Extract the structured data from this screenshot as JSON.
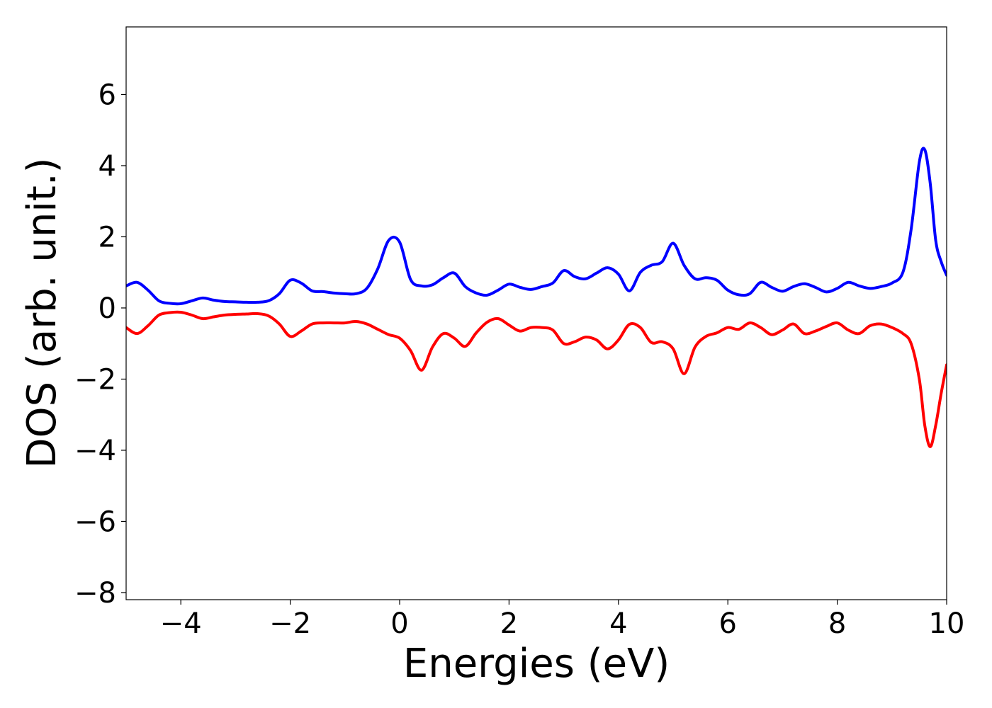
{
  "chart_data": {
    "type": "line",
    "xlabel": "Energies (eV)",
    "ylabel": "DOS (arb. unit.)",
    "xlim": [
      -5,
      10
    ],
    "ylim": [
      -8.2,
      7.9
    ],
    "x_ticks": [
      -4,
      -2,
      0,
      2,
      4,
      6,
      8,
      10
    ],
    "x_tick_labels": [
      "−4",
      "−2",
      "0",
      "2",
      "4",
      "6",
      "8",
      "10"
    ],
    "y_ticks": [
      -8,
      -6,
      -4,
      -2,
      0,
      2,
      4,
      6
    ],
    "y_tick_labels": [
      "−8",
      "−6",
      "−4",
      "−2",
      "0",
      "2",
      "4",
      "6"
    ],
    "grid": false,
    "legend": "none",
    "series": [
      {
        "color": "#0000ff",
        "x": [
          -5.0,
          -4.8,
          -4.6,
          -4.4,
          -4.2,
          -4.0,
          -3.8,
          -3.6,
          -3.4,
          -3.2,
          -3.0,
          -2.8,
          -2.6,
          -2.4,
          -2.2,
          -2.0,
          -1.8,
          -1.6,
          -1.4,
          -1.2,
          -1.0,
          -0.8,
          -0.6,
          -0.4,
          -0.2,
          0.0,
          0.2,
          0.4,
          0.6,
          0.8,
          1.0,
          1.2,
          1.4,
          1.6,
          1.8,
          2.0,
          2.2,
          2.4,
          2.6,
          2.8,
          3.0,
          3.2,
          3.4,
          3.6,
          3.8,
          4.0,
          4.2,
          4.4,
          4.6,
          4.8,
          5.0,
          5.2,
          5.4,
          5.6,
          5.8,
          6.0,
          6.2,
          6.4,
          6.6,
          6.8,
          7.0,
          7.2,
          7.4,
          7.6,
          7.8,
          8.0,
          8.2,
          8.4,
          8.6,
          8.8,
          9.0,
          9.2,
          9.35,
          9.5,
          9.6,
          9.7,
          9.8,
          9.9,
          10.0
        ],
        "y": [
          0.62,
          0.72,
          0.5,
          0.2,
          0.13,
          0.12,
          0.2,
          0.28,
          0.22,
          0.18,
          0.17,
          0.16,
          0.16,
          0.2,
          0.4,
          0.78,
          0.7,
          0.48,
          0.46,
          0.42,
          0.4,
          0.4,
          0.55,
          1.1,
          1.9,
          1.85,
          0.8,
          0.62,
          0.65,
          0.85,
          0.98,
          0.6,
          0.42,
          0.36,
          0.5,
          0.67,
          0.58,
          0.52,
          0.6,
          0.7,
          1.05,
          0.88,
          0.82,
          0.98,
          1.13,
          0.95,
          0.48,
          1.0,
          1.2,
          1.3,
          1.82,
          1.2,
          0.82,
          0.85,
          0.78,
          0.5,
          0.37,
          0.4,
          0.72,
          0.58,
          0.47,
          0.6,
          0.68,
          0.58,
          0.45,
          0.55,
          0.72,
          0.62,
          0.55,
          0.6,
          0.7,
          1.0,
          2.2,
          4.1,
          4.45,
          3.5,
          1.9,
          1.3,
          0.92
        ]
      },
      {
        "color": "#ff0000",
        "x": [
          -5.0,
          -4.8,
          -4.6,
          -4.4,
          -4.2,
          -4.0,
          -3.8,
          -3.6,
          -3.4,
          -3.2,
          -3.0,
          -2.8,
          -2.6,
          -2.4,
          -2.2,
          -2.0,
          -1.8,
          -1.6,
          -1.4,
          -1.2,
          -1.0,
          -0.8,
          -0.6,
          -0.4,
          -0.2,
          0.0,
          0.2,
          0.4,
          0.6,
          0.8,
          1.0,
          1.2,
          1.4,
          1.6,
          1.8,
          2.0,
          2.2,
          2.4,
          2.6,
          2.8,
          3.0,
          3.2,
          3.4,
          3.6,
          3.8,
          4.0,
          4.2,
          4.4,
          4.6,
          4.8,
          5.0,
          5.2,
          5.4,
          5.6,
          5.8,
          6.0,
          6.2,
          6.4,
          6.6,
          6.8,
          7.0,
          7.2,
          7.4,
          7.6,
          7.8,
          8.0,
          8.2,
          8.4,
          8.6,
          8.8,
          9.0,
          9.2,
          9.35,
          9.5,
          9.6,
          9.7,
          9.8,
          9.9,
          10.0
        ],
        "y": [
          -0.55,
          -0.72,
          -0.5,
          -0.2,
          -0.13,
          -0.12,
          -0.2,
          -0.3,
          -0.25,
          -0.2,
          -0.18,
          -0.17,
          -0.16,
          -0.22,
          -0.45,
          -0.8,
          -0.65,
          -0.45,
          -0.42,
          -0.42,
          -0.42,
          -0.38,
          -0.45,
          -0.6,
          -0.75,
          -0.85,
          -1.2,
          -1.75,
          -1.1,
          -0.72,
          -0.85,
          -1.08,
          -0.7,
          -0.4,
          -0.3,
          -0.48,
          -0.65,
          -0.55,
          -0.55,
          -0.62,
          -1.0,
          -0.95,
          -0.82,
          -0.9,
          -1.15,
          -0.9,
          -0.46,
          -0.55,
          -0.97,
          -0.95,
          -1.15,
          -1.85,
          -1.1,
          -0.8,
          -0.7,
          -0.55,
          -0.6,
          -0.42,
          -0.55,
          -0.75,
          -0.62,
          -0.45,
          -0.72,
          -0.65,
          -0.52,
          -0.42,
          -0.62,
          -0.72,
          -0.5,
          -0.45,
          -0.55,
          -0.72,
          -1.0,
          -2.0,
          -3.3,
          -3.9,
          -3.3,
          -2.4,
          -1.6
        ]
      }
    ]
  }
}
